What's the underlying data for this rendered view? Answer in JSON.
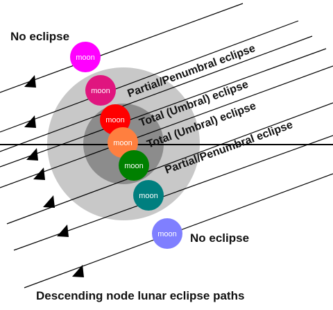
{
  "title": "Descending node lunar eclipse paths",
  "moon_label": "moon",
  "labels": {
    "no_eclipse_top": "No eclipse",
    "partial_upper": "Partial/Penumbral eclipse",
    "total_upper": "Total (Umbral) eclipse",
    "total_lower": "Total (Umbral) eclipse",
    "partial_lower": "Partial/Penumbral eclipse",
    "no_eclipse_bottom": "No eclipse"
  },
  "colors": {
    "penumbra": "#c8c8c8",
    "umbra": "#8c8c8c",
    "moon_no_eclipse_top": "#ff00ff",
    "moon_partial_upper": "#e0157f",
    "moon_total_upper": "#ff0000",
    "moon_center": "#ff7f3f",
    "moon_total_lower": "#008000",
    "moon_partial_lower": "#007f7f",
    "moon_no_eclipse_bottom": "#7f7fff"
  }
}
